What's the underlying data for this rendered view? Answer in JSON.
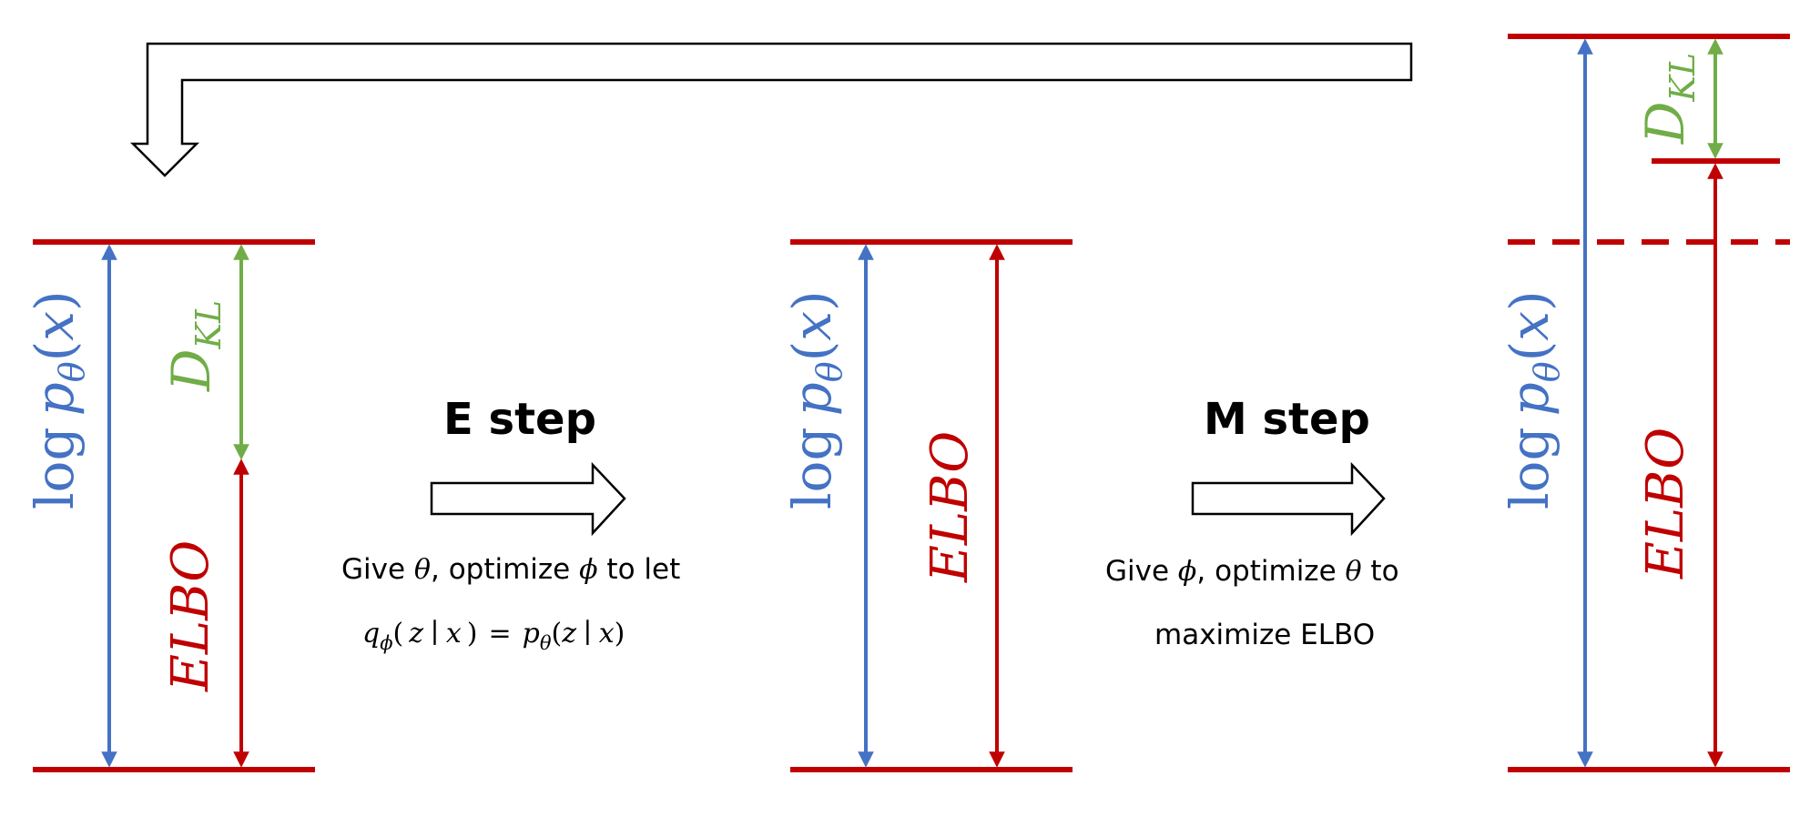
{
  "colors": {
    "blue": "#4472C4",
    "red": "#C00000",
    "green": "#70AD47",
    "black": "#000000"
  },
  "labels": {
    "log_word": "log",
    "p_letter": "p",
    "theta": "θ",
    "phi": "ϕ",
    "x_var": "x",
    "z_var": "z",
    "paren_open": "(",
    "paren_close": ")",
    "bar": "∣",
    "equals": "=",
    "kl_d": "D",
    "kl_sub": "KL",
    "elbo": "ELBO",
    "q_letter": "q"
  },
  "e_step": {
    "title": "E step",
    "caption_line1_a": "Give ",
    "caption_line1_b": ", optimize ",
    "caption_line1_c": " to let"
  },
  "m_step": {
    "title": "M step",
    "caption_line1_a": "Give ",
    "caption_line1_b": ", optimize ",
    "caption_line1_c": " to",
    "caption_line2": "maximize ELBO"
  }
}
